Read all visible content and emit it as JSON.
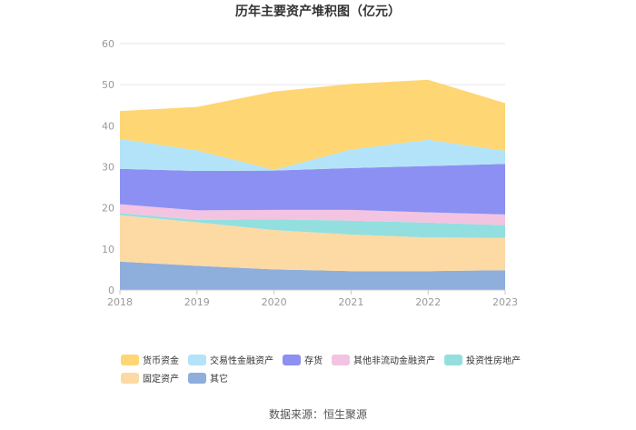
{
  "chart_data": {
    "type": "area",
    "stacked": true,
    "title": "历年主要资产堆积图（亿元）",
    "categories": [
      "2018",
      "2019",
      "2020",
      "2021",
      "2022",
      "2023"
    ],
    "ylim": [
      0,
      60
    ],
    "yticks": [
      "0",
      "10",
      "20",
      "30",
      "40",
      "50",
      "60"
    ],
    "grid": true,
    "legend_position": "bottom-left",
    "series": [
      {
        "name": "其它",
        "color": "#8eaedc",
        "values": [
          6.9,
          5.9,
          5.0,
          4.6,
          4.6,
          4.8
        ]
      },
      {
        "name": "固定资产",
        "color": "#fdd9a3",
        "values": [
          11.3,
          10.6,
          9.6,
          8.9,
          8.2,
          7.9
        ]
      },
      {
        "name": "投资性房地产",
        "color": "#93dfdf",
        "values": [
          0.5,
          0.6,
          2.6,
          3.4,
          3.6,
          3.1
        ]
      },
      {
        "name": "其他非流动金融资产",
        "color": "#f2c4e2",
        "values": [
          2.2,
          2.3,
          2.3,
          2.6,
          2.5,
          2.6
        ]
      },
      {
        "name": "存货",
        "color": "#8c90f2",
        "values": [
          8.6,
          9.6,
          9.6,
          10.2,
          11.3,
          12.3
        ]
      },
      {
        "name": "交易性金融资产",
        "color": "#b3e3f8",
        "values": [
          7.3,
          5.0,
          0.2,
          4.5,
          6.4,
          3.2
        ]
      },
      {
        "name": "货币资金",
        "color": "#fed673",
        "values": [
          6.8,
          10.6,
          19.0,
          16.0,
          14.6,
          11.6
        ]
      }
    ],
    "legend_order": [
      "货币资金",
      "交易性金融资产",
      "存货",
      "其他非流动金融资产",
      "投资性房地产",
      "固定资产",
      "其它"
    ]
  },
  "source": "数据来源：恒生聚源"
}
